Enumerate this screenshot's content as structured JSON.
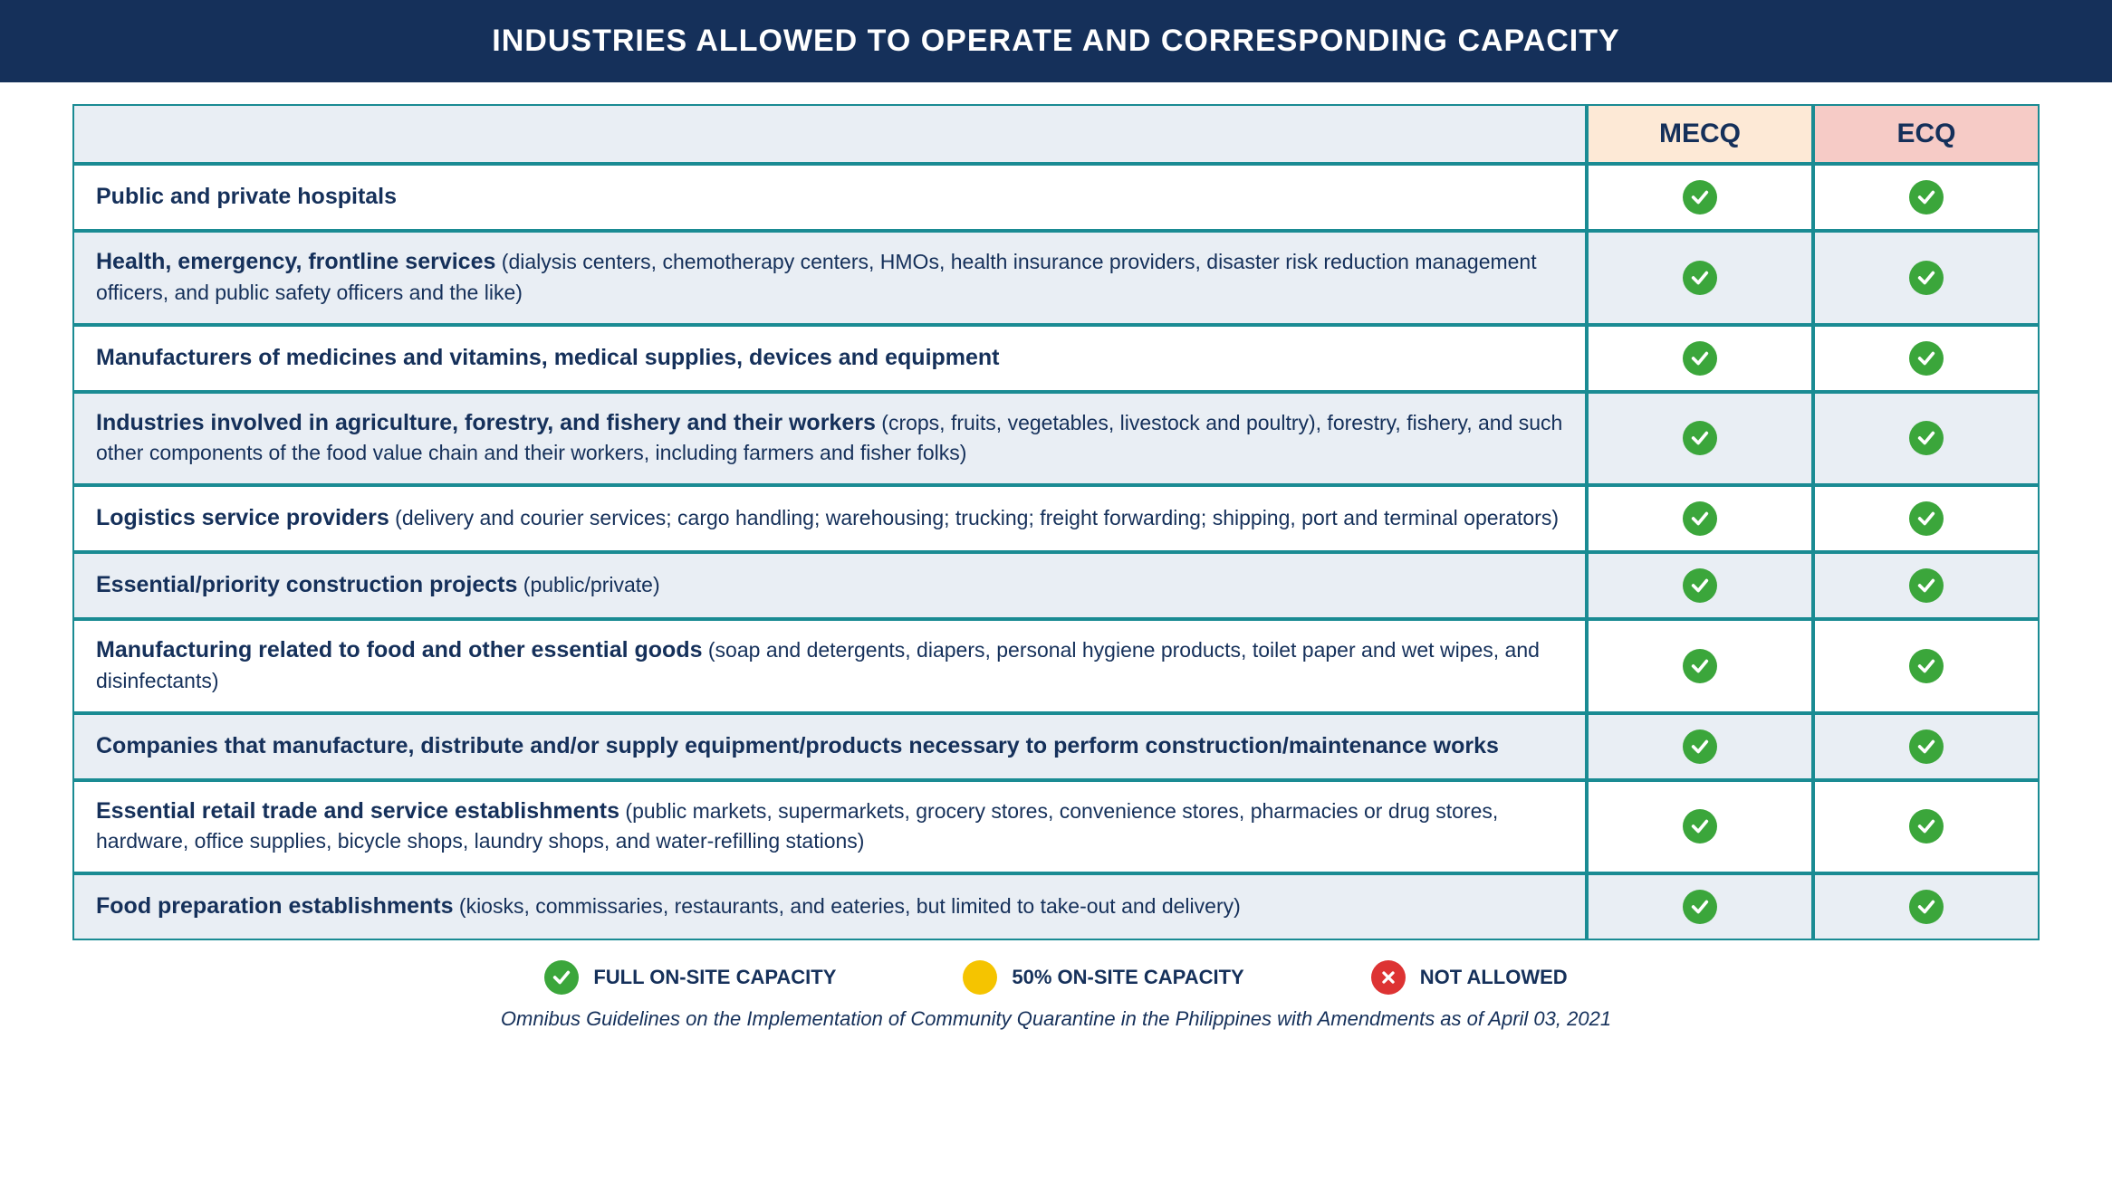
{
  "header": {
    "title": "INDUSTRIES ALLOWED TO OPERATE AND CORRESPONDING CAPACITY"
  },
  "table": {
    "columns": {
      "blank": "",
      "mecq": "MECQ",
      "ecq": "ECQ"
    },
    "header_bg": {
      "blank": "#e9eef4",
      "mecq": "#fde9d6",
      "ecq": "#f6cbc6"
    },
    "border_color": "#1a8b93",
    "row_alt_bg": "#e9eef4",
    "text_color": "#15305a",
    "rows": [
      {
        "title": "Public and private hospitals",
        "detail": "",
        "mecq": "full",
        "ecq": "full"
      },
      {
        "title": "Health, emergency, frontline services",
        "detail": " (dialysis centers, chemotherapy centers, HMOs, health insurance providers, disaster risk reduction management officers, and public safety officers and the like)",
        "mecq": "full",
        "ecq": "full"
      },
      {
        "title": "Manufacturers of medicines and vitamins, medical supplies, devices and equipment",
        "detail": "",
        "mecq": "full",
        "ecq": "full"
      },
      {
        "title": "Industries involved in agriculture, forestry, and fishery and their workers",
        "detail": " (crops, fruits, vegetables, livestock and poultry), forestry, fishery, and such other components of the food value chain and their workers, including farmers and fisher folks)",
        "mecq": "full",
        "ecq": "full"
      },
      {
        "title": "Logistics service providers",
        "detail": " (delivery and courier services; cargo handling; warehousing; trucking; freight forwarding; shipping, port and terminal operators)",
        "mecq": "full",
        "ecq": "full"
      },
      {
        "title": "Essential/priority construction projects",
        "detail": " (public/private)",
        "mecq": "full",
        "ecq": "full"
      },
      {
        "title": "Manufacturing related to food and other essential goods",
        "detail": " (soap and detergents, diapers, personal hygiene products, toilet paper and wet wipes, and disinfectants)",
        "mecq": "full",
        "ecq": "full"
      },
      {
        "title": "Companies that manufacture, distribute and/or supply equipment/products necessary to perform construction/maintenance works",
        "detail": "",
        "mecq": "full",
        "ecq": "full"
      },
      {
        "title": "Essential retail trade and service establishments",
        "detail": " (public markets, supermarkets, grocery stores, convenience stores, pharmacies or drug stores, hardware, office supplies, bicycle shops, laundry shops, and water-refilling stations)",
        "mecq": "full",
        "ecq": "full"
      },
      {
        "title": "Food preparation establishments",
        "detail": " (kiosks, commissaries, restaurants, and eateries, but limited to take-out and delivery)",
        "mecq": "full",
        "ecq": "full"
      }
    ]
  },
  "legend": {
    "full": {
      "label": "FULL ON-SITE CAPACITY",
      "color": "#3ba63b"
    },
    "half": {
      "label": "50% ON-SITE CAPACITY",
      "color": "#f5c400"
    },
    "not": {
      "label": "NOT ALLOWED",
      "color": "#d33"
    }
  },
  "footnote": "Omnibus Guidelines on the Implementation of Community Quarantine in the Philippines with Amendments as of April 03, 2021",
  "icons": {
    "full": "check-icon",
    "half": "circle-icon",
    "not": "cross-icon"
  }
}
